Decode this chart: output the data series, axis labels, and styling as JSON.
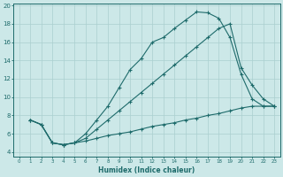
{
  "xlabel": "Humidex (Indice chaleur)",
  "background_color": "#cce8e8",
  "grid_color": "#aacfcf",
  "line_color": "#1e6b6b",
  "xlim": [
    -0.5,
    23.5
  ],
  "ylim": [
    3.5,
    20.2
  ],
  "xticks": [
    0,
    1,
    2,
    3,
    4,
    5,
    6,
    7,
    8,
    9,
    10,
    11,
    12,
    13,
    14,
    15,
    16,
    17,
    18,
    19,
    20,
    21,
    22,
    23
  ],
  "yticks": [
    4,
    6,
    8,
    10,
    12,
    14,
    16,
    18,
    20
  ],
  "line1_x": [
    1,
    2,
    3,
    4,
    5,
    6,
    7,
    8,
    9,
    10,
    11,
    12,
    13,
    14,
    15,
    16,
    17,
    18,
    19,
    20,
    21,
    22,
    23
  ],
  "line1_y": [
    7.5,
    7.0,
    5.0,
    4.8,
    5.0,
    6.0,
    7.5,
    9.0,
    11.0,
    13.0,
    14.2,
    16.0,
    16.5,
    17.5,
    18.4,
    19.3,
    19.2,
    18.6,
    16.5,
    12.5,
    9.8,
    9.0,
    9.0
  ],
  "line2_x": [
    1,
    2,
    3,
    4,
    5,
    6,
    7,
    8,
    9,
    10,
    11,
    12,
    13,
    14,
    15,
    16,
    17,
    18,
    19,
    20,
    21,
    22,
    23
  ],
  "line2_y": [
    7.5,
    7.0,
    5.0,
    4.8,
    5.0,
    5.5,
    6.5,
    7.5,
    8.5,
    9.5,
    10.5,
    11.5,
    12.5,
    13.5,
    14.5,
    15.5,
    16.5,
    17.5,
    18.0,
    13.2,
    11.3,
    9.8,
    9.0
  ],
  "line3_x": [
    1,
    2,
    3,
    4,
    5,
    6,
    7,
    8,
    9,
    10,
    11,
    12,
    13,
    14,
    15,
    16,
    17,
    18,
    19,
    20,
    21,
    22,
    23
  ],
  "line3_y": [
    7.5,
    7.0,
    5.0,
    4.8,
    5.0,
    5.2,
    5.5,
    5.8,
    6.0,
    6.2,
    6.5,
    6.8,
    7.0,
    7.2,
    7.5,
    7.7,
    8.0,
    8.2,
    8.5,
    8.8,
    9.0,
    9.0,
    9.0
  ]
}
